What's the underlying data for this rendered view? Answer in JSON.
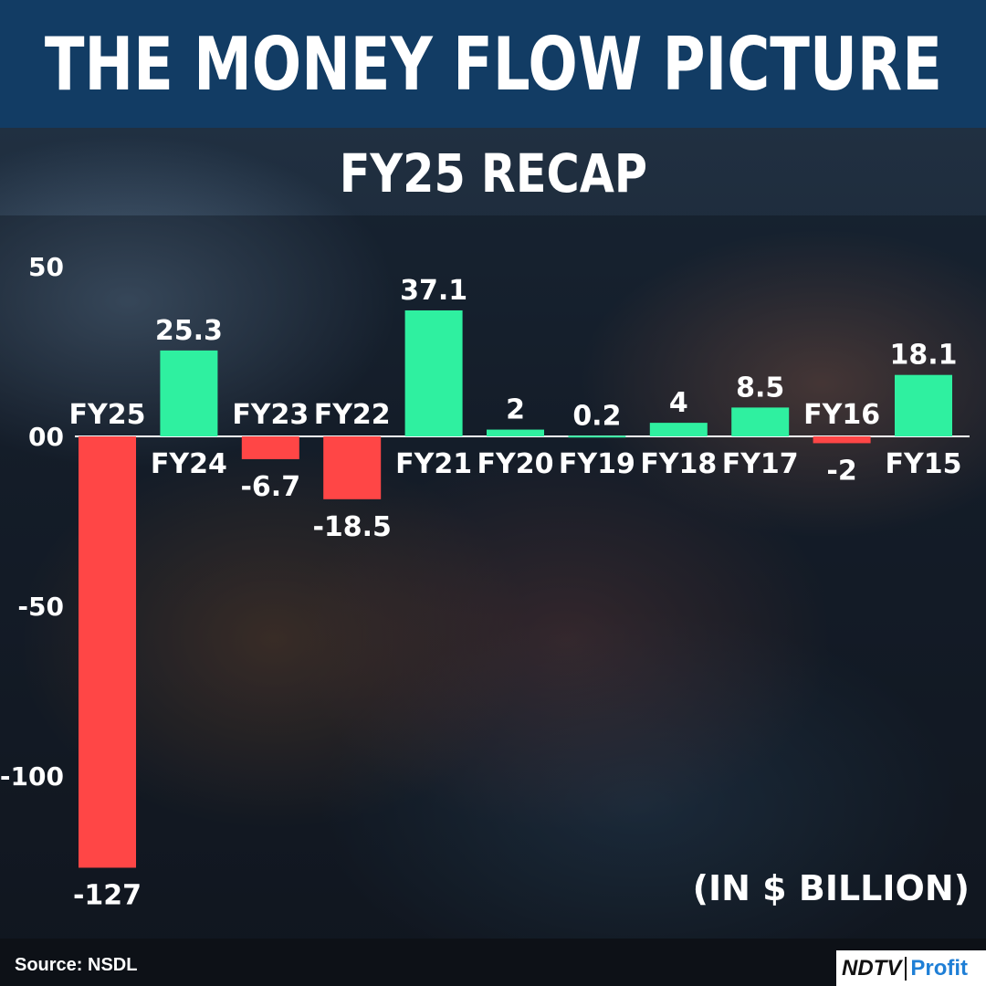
{
  "header": {
    "title": "THE MONEY FLOW PICTURE"
  },
  "subtitle": "FY25 RECAP",
  "footer": {
    "source": "Source: NSDL"
  },
  "logo": {
    "part1": "NDTV",
    "part2": "Profit"
  },
  "colors": {
    "positive": "#2ff0a0",
    "negative": "#ff4646",
    "header_bg": "#123c64"
  },
  "chart_data": {
    "type": "bar",
    "categories": [
      "FY25",
      "FY24",
      "FY23",
      "FY22",
      "FY21",
      "FY20",
      "FY19",
      "FY18",
      "FY17",
      "FY16",
      "FY15"
    ],
    "values": [
      -127,
      25.3,
      -6.7,
      -18.5,
      37.1,
      2,
      0.2,
      4,
      8.5,
      -2,
      18.1
    ],
    "value_labels": [
      "-127",
      "25.3",
      "-6.7",
      "-18.5",
      "37.1",
      "2",
      "0.2",
      "4",
      "8.5",
      "-2",
      "18.1"
    ],
    "yticks": [
      "50",
      "00",
      "-50",
      "-100"
    ],
    "ytick_values": [
      50,
      0,
      -50,
      -100
    ],
    "unit_label": "(IN $ BILLION)",
    "ylim": [
      -127,
      50
    ],
    "grid": false
  }
}
